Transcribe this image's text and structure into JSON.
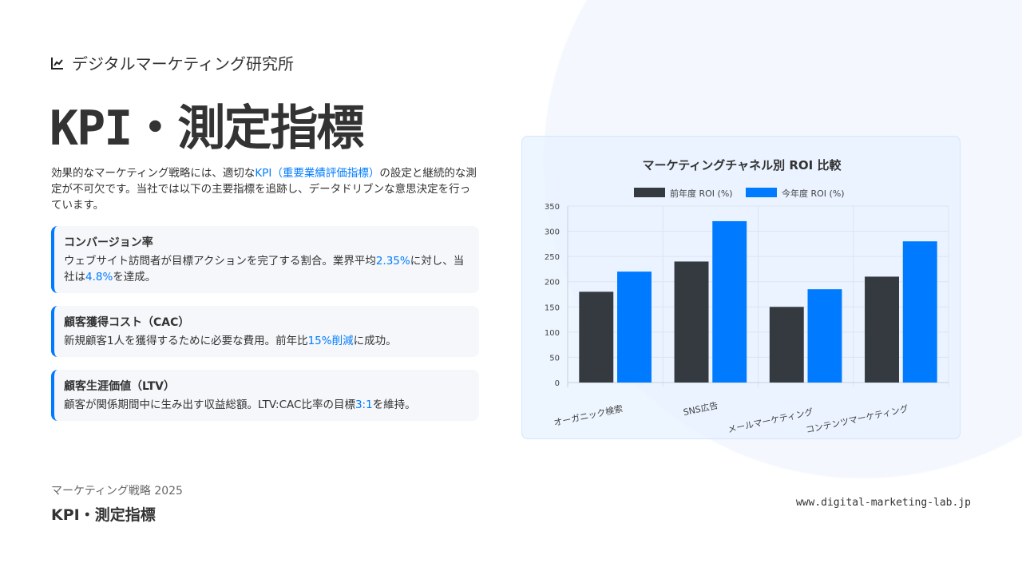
{
  "brand": {
    "name": "デジタルマーケティング研究所",
    "icon": "line-chart-icon"
  },
  "title": "KPI・測定指標",
  "intro": {
    "p1": "効果的なマーケティング戦略には、適切な",
    "hl": "KPI（重要業績評価指標）",
    "p2": "の設定と継続的な測定が不可欠です。当社では以下の主要指標を追跡し、データドリブンな意思決定を行っています。"
  },
  "cards": [
    {
      "title": "コンバージョン率",
      "t1": "ウェブサイト訪問者が目標アクションを完了する割合。業界平均",
      "h1": "2.35%",
      "t2": "に対し、当社は",
      "h2": "4.8%",
      "t3": "を達成。"
    },
    {
      "title": "顧客獲得コスト（CAC）",
      "t1": "新規顧客1人を獲得するために必要な費用。前年比",
      "h1": "15%削減",
      "t2": "に成功。"
    },
    {
      "title": "顧客生涯価値（LTV）",
      "t1": "顧客が関係期間中に生み出す収益総額。LTV:CAC比率の目標",
      "h1": "3:1",
      "t2": "を維持。"
    }
  ],
  "footer": {
    "subtitle": "マーケティング戦略 2025",
    "title": "KPI・測定指標",
    "url": "www.digital-marketing-lab.jp"
  },
  "colors": {
    "accent": "#007bff",
    "dark": "#343a40"
  },
  "chart_data": {
    "type": "bar",
    "title": "マーケティングチャネル別 ROI 比較",
    "categories": [
      "オーガニック検索",
      "SNS広告",
      "メールマーケティング",
      "コンテンツマーケティング"
    ],
    "series": [
      {
        "name": "前年度 ROI (%)",
        "color": "#343a40",
        "values": [
          180,
          240,
          150,
          210
        ]
      },
      {
        "name": "今年度 ROI (%)",
        "color": "#007bff",
        "values": [
          220,
          320,
          185,
          280
        ]
      }
    ],
    "ylim": [
      0,
      350
    ],
    "yticks": [
      0,
      50,
      100,
      150,
      200,
      250,
      300,
      350
    ],
    "grid": true,
    "legend": "top"
  }
}
